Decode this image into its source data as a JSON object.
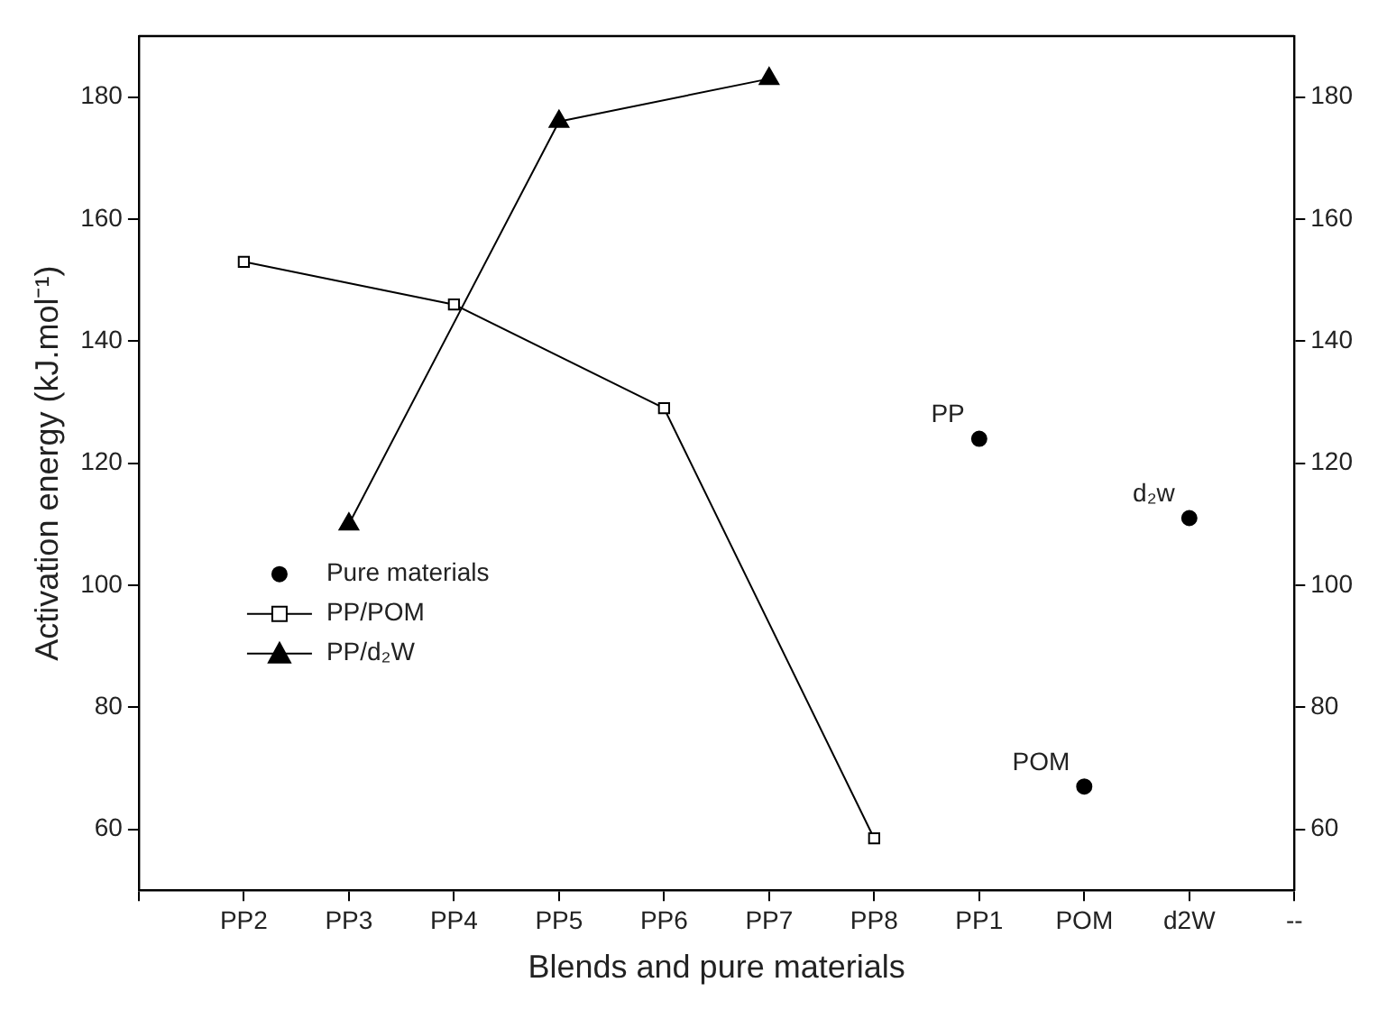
{
  "chart_data": {
    "type": "line",
    "xlabel": "Blends and pure materials",
    "ylabel": "Activation energy (kJ.mol⁻¹)",
    "categories": [
      null,
      "PP2",
      "PP3",
      "PP4",
      "PP5",
      "PP6",
      "PP7",
      "PP8",
      "PP1",
      "POM",
      "d2W",
      "--"
    ],
    "series": [
      {
        "name": "Pure materials",
        "type": "scatter",
        "color": "#000000",
        "marker": "circle",
        "x": [
          "PP1",
          "POM",
          "d2W"
        ],
        "values": [
          124,
          67,
          111
        ]
      },
      {
        "name": "PP/POM",
        "type": "line",
        "color": "#000000",
        "marker": "square",
        "x": [
          "PP2",
          "PP4",
          "PP6",
          "PP8"
        ],
        "values": [
          153,
          146,
          129,
          58.5
        ]
      },
      {
        "name": "PP/d₂W",
        "type": "line",
        "color": "#000000",
        "marker": "triangle",
        "x": [
          "PP3",
          "PP5",
          "PP7"
        ],
        "values": [
          110,
          176,
          183
        ]
      }
    ],
    "ylim": [
      50,
      190
    ],
    "yticks": [
      60,
      80,
      100,
      120,
      140,
      160,
      180
    ],
    "y2lim": [
      50,
      190
    ],
    "y2ticks": [
      60,
      80,
      100,
      120,
      140,
      160,
      180
    ],
    "grid": false,
    "legend": "left",
    "line_style": "solid",
    "annotations": [
      {
        "text": "PP",
        "x": "PP1",
        "y": 124
      },
      {
        "text": "POM",
        "x": "POM",
        "y": 67
      },
      {
        "text": "d₂w",
        "x": "d2W",
        "y": 111
      }
    ]
  }
}
